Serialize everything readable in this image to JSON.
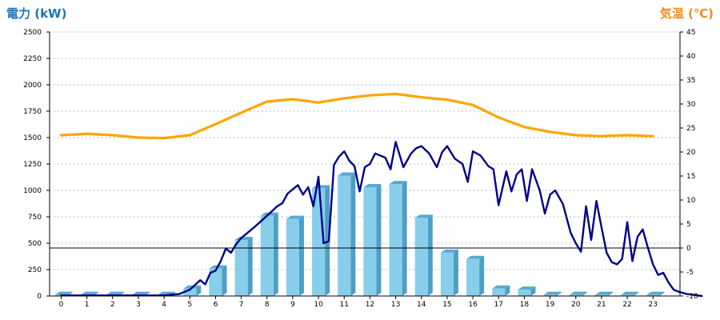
{
  "chart_data": {
    "type": "bar",
    "title": "",
    "ylabel_left": "電力 (kW)",
    "ylabel_right": "気温 (℃)",
    "xlabel": "",
    "grid": true,
    "legend": "none",
    "categories": [
      "0",
      "1",
      "2",
      "3",
      "4",
      "5",
      "6",
      "7",
      "8",
      "9",
      "10",
      "11",
      "12",
      "13",
      "14",
      "15",
      "16",
      "17",
      "18",
      "19",
      "20",
      "21",
      "22",
      "23"
    ],
    "ylim_left": [
      0,
      2500
    ],
    "yticks_left": [
      0,
      250,
      500,
      750,
      1000,
      1250,
      1500,
      1750,
      2000,
      2250,
      2500
    ],
    "ylim_right": [
      -10,
      45
    ],
    "yticks_right": [
      -10,
      -5,
      0,
      5,
      10,
      15,
      20,
      25,
      30,
      35,
      40,
      45
    ],
    "reference_line_right": 0,
    "colors": {
      "bar_front": "#87CEEB",
      "bar_side": "#4F9EC4",
      "bar_top": "#5AA9CF",
      "power_line": "#00008B",
      "temp_line": "#FFA500",
      "left_title": "#1E73BE",
      "right_title": "#F08C1E",
      "grid": "#BBBBBB"
    },
    "series": [
      {
        "type": "bar",
        "axis": "left",
        "values": [
          10,
          10,
          10,
          10,
          10,
          70,
          260,
          530,
          760,
          730,
          1020,
          1140,
          1030,
          1060,
          740,
          410,
          350,
          70,
          60,
          10,
          10,
          10,
          10,
          10
        ]
      },
      {
        "type": "line",
        "axis": "left",
        "points": [
          [
            0,
            5
          ],
          [
            1,
            5
          ],
          [
            2,
            5
          ],
          [
            3,
            5
          ],
          [
            4,
            5
          ],
          [
            4.6,
            20
          ],
          [
            5,
            60
          ],
          [
            5.4,
            150
          ],
          [
            5.6,
            110
          ],
          [
            5.8,
            220
          ],
          [
            6.0,
            240
          ],
          [
            6.2,
            330
          ],
          [
            6.4,
            450
          ],
          [
            6.6,
            410
          ],
          [
            6.8,
            490
          ],
          [
            7.0,
            550
          ],
          [
            7.5,
            650
          ],
          [
            8.0,
            760
          ],
          [
            8.4,
            850
          ],
          [
            8.6,
            880
          ],
          [
            8.8,
            970
          ],
          [
            9.0,
            1010
          ],
          [
            9.2,
            1050
          ],
          [
            9.4,
            960
          ],
          [
            9.6,
            1030
          ],
          [
            9.8,
            850
          ],
          [
            10.0,
            1130
          ],
          [
            10.2,
            500
          ],
          [
            10.4,
            520
          ],
          [
            10.6,
            1240
          ],
          [
            10.8,
            1320
          ],
          [
            11.0,
            1370
          ],
          [
            11.2,
            1280
          ],
          [
            11.4,
            1230
          ],
          [
            11.6,
            990
          ],
          [
            11.8,
            1220
          ],
          [
            12.0,
            1250
          ],
          [
            12.2,
            1350
          ],
          [
            12.6,
            1310
          ],
          [
            12.8,
            1200
          ],
          [
            13.0,
            1460
          ],
          [
            13.3,
            1220
          ],
          [
            13.6,
            1350
          ],
          [
            13.8,
            1400
          ],
          [
            14.0,
            1420
          ],
          [
            14.3,
            1350
          ],
          [
            14.6,
            1220
          ],
          [
            14.8,
            1360
          ],
          [
            15.0,
            1420
          ],
          [
            15.3,
            1300
          ],
          [
            15.6,
            1250
          ],
          [
            15.8,
            1080
          ],
          [
            16.0,
            1370
          ],
          [
            16.3,
            1330
          ],
          [
            16.6,
            1230
          ],
          [
            16.8,
            1200
          ],
          [
            17.0,
            860
          ],
          [
            17.3,
            1180
          ],
          [
            17.5,
            990
          ],
          [
            17.7,
            1150
          ],
          [
            17.9,
            1200
          ],
          [
            18.1,
            900
          ],
          [
            18.3,
            1200
          ],
          [
            18.6,
            1000
          ],
          [
            18.8,
            780
          ],
          [
            19.0,
            960
          ],
          [
            19.2,
            1000
          ],
          [
            19.5,
            870
          ],
          [
            19.8,
            600
          ],
          [
            20.0,
            500
          ],
          [
            20.2,
            420
          ],
          [
            20.4,
            850
          ],
          [
            20.6,
            530
          ],
          [
            20.8,
            900
          ],
          [
            21.0,
            650
          ],
          [
            21.2,
            410
          ],
          [
            21.4,
            320
          ],
          [
            21.6,
            300
          ],
          [
            21.8,
            350
          ],
          [
            22.0,
            700
          ],
          [
            22.2,
            330
          ],
          [
            22.4,
            560
          ],
          [
            22.6,
            630
          ],
          [
            22.8,
            460
          ],
          [
            23.0,
            300
          ],
          [
            23.2,
            200
          ],
          [
            23.4,
            220
          ],
          [
            23.6,
            130
          ],
          [
            23.8,
            60
          ],
          [
            24.0,
            40
          ],
          [
            24.3,
            20
          ],
          [
            24.6,
            10
          ],
          [
            24.9,
            0
          ]
        ]
      },
      {
        "type": "line",
        "axis": "right",
        "points": [
          [
            0,
            23.5
          ],
          [
            1,
            23.8
          ],
          [
            2,
            23.5
          ],
          [
            3,
            23.0
          ],
          [
            4,
            22.9
          ],
          [
            5,
            23.5
          ],
          [
            6,
            25.8
          ],
          [
            7,
            28.2
          ],
          [
            8,
            30.5
          ],
          [
            9,
            31
          ],
          [
            10,
            30.3
          ],
          [
            11,
            31.2
          ],
          [
            12,
            31.8
          ],
          [
            13,
            32.1
          ],
          [
            14,
            31.4
          ],
          [
            15,
            30.9
          ],
          [
            16,
            29.8
          ],
          [
            17,
            27.2
          ],
          [
            18,
            25.2
          ],
          [
            19,
            24.2
          ],
          [
            20,
            23.5
          ],
          [
            21,
            23.3
          ],
          [
            22,
            23.5
          ],
          [
            23,
            23.3
          ]
        ]
      }
    ]
  }
}
